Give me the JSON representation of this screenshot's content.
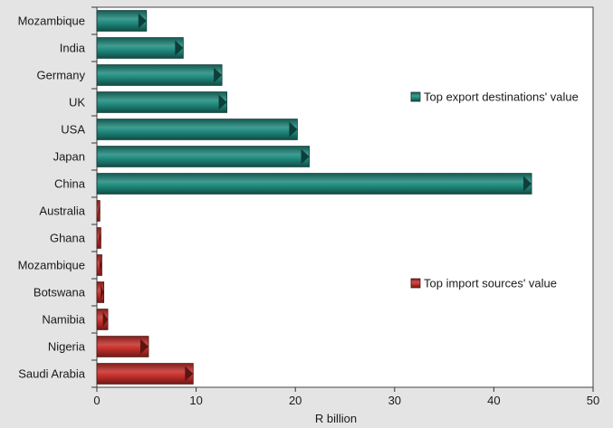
{
  "chart_data": {
    "type": "bar",
    "orientation": "horizontal",
    "categories": [
      "Mozambique",
      "India",
      "Germany",
      "UK",
      "USA",
      "Japan",
      "China",
      "Australia",
      "Ghana",
      "Mozambique",
      "Botswana",
      "Namibia",
      "Nigeria",
      "Saudi Arabia"
    ],
    "series": [
      {
        "name": "Top export destinations' value",
        "color": "#1f8a7e",
        "points": [
          {
            "category": "Mozambique",
            "value": 5.0
          },
          {
            "category": "India",
            "value": 8.7
          },
          {
            "category": "Germany",
            "value": 12.6
          },
          {
            "category": "UK",
            "value": 13.1
          },
          {
            "category": "USA",
            "value": 20.2
          },
          {
            "category": "Japan",
            "value": 21.4
          },
          {
            "category": "China",
            "value": 43.8
          }
        ]
      },
      {
        "name": "Top import sources' value",
        "color": "#c62f2a",
        "points": [
          {
            "category": "Australia",
            "value": 0.3
          },
          {
            "category": "Ghana",
            "value": 0.4
          },
          {
            "category": "Mozambique",
            "value": 0.5
          },
          {
            "category": "Botswana",
            "value": 0.7
          },
          {
            "category": "Namibia",
            "value": 1.1
          },
          {
            "category": "Nigeria",
            "value": 5.2
          },
          {
            "category": "Saudi Arabia",
            "value": 9.7
          }
        ]
      }
    ],
    "xlabel": "R billion",
    "xlim": [
      0,
      50
    ],
    "xticks": [
      0,
      10,
      20,
      30,
      40,
      50
    ],
    "grid": false,
    "legend_placement": "right"
  }
}
